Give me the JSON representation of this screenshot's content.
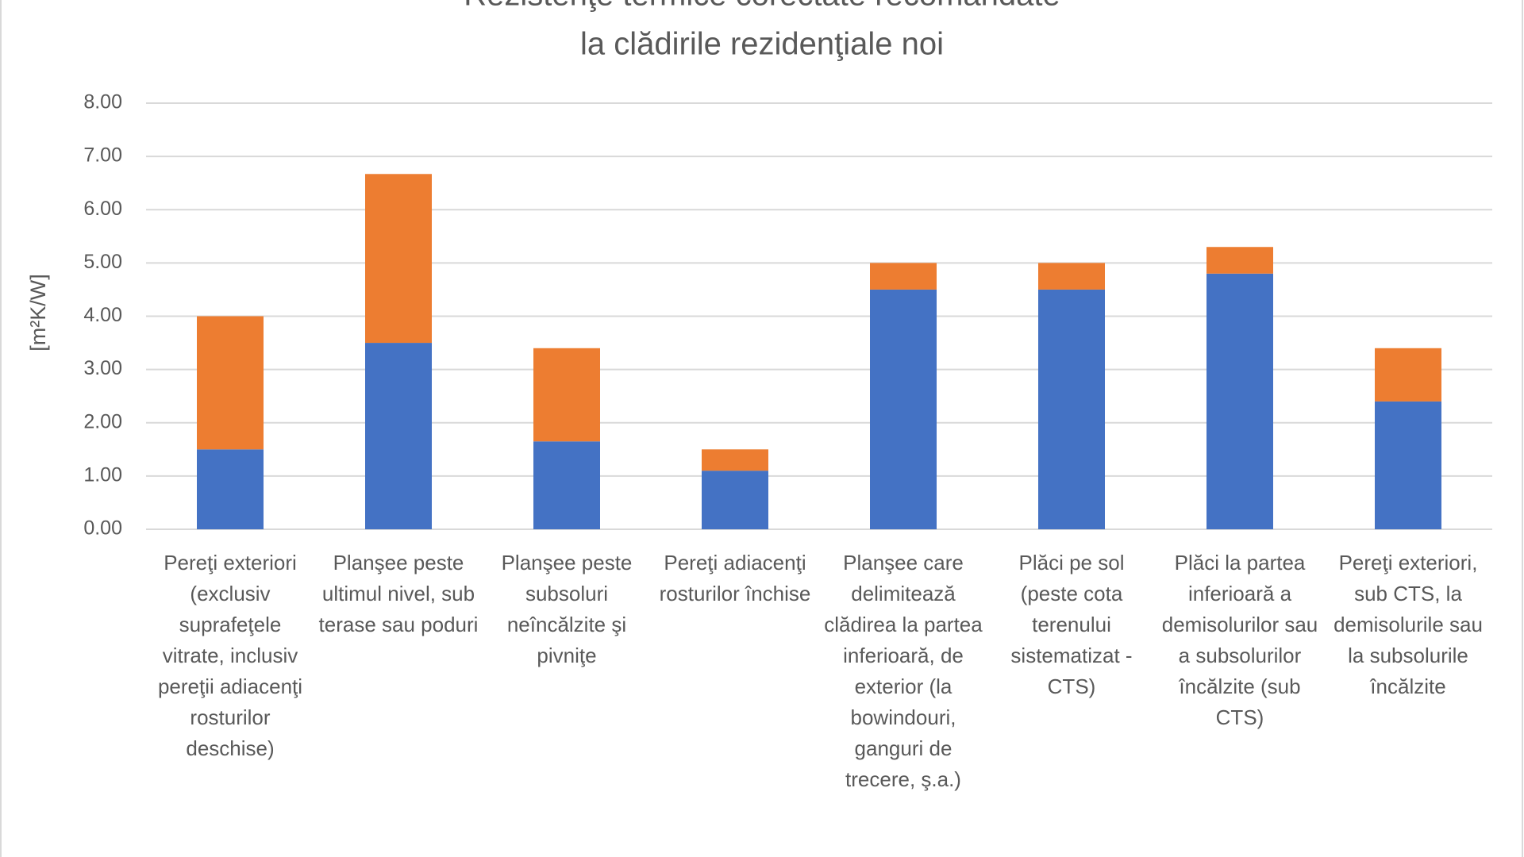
{
  "chart_data": {
    "type": "stacked_bar",
    "title": "Rezistenţe termice corectate recomandate",
    "subtitle": "la clădirile rezidenţiale noi",
    "y_label": "[m²K/W]",
    "categories": [
      "Pereţi exteriori (exclusiv suprafeţele vitrate, inclusiv pereţii adiacenţi rosturilor deschise)",
      "Planşee peste ultimul nivel, sub terase sau poduri",
      "Planşee peste subsoluri neîncălzite şi pivniţe",
      "Pereţi adiacenţi rosturilor închise",
      "Planşee care delimitează clădirea la partea inferioară, de exterior (la bowindouri, ganguri de trecere, ş.a.)",
      "Plăci pe sol (peste cota terenului sistematizat - CTS)",
      "Plăci la partea inferioară a demisolurilor sau a subsolurilor încălzite (sub CTS)",
      "Pereţi exteriori, sub CTS, la demisolurile sau la subsolurile încălzite"
    ],
    "series": [
      {
        "color": "#4472c4",
        "values": [
          1.5,
          3.5,
          1.65,
          1.1,
          4.5,
          4.5,
          4.8,
          2.4
        ]
      },
      {
        "color": "#ed7d31",
        "values": [
          2.5,
          3.17,
          1.75,
          0.4,
          0.5,
          0.5,
          0.5,
          1.0
        ]
      }
    ],
    "ylim": [
      0,
      8
    ],
    "yticks": [
      {
        "value": 0,
        "label": "0.00"
      },
      {
        "value": 1,
        "label": "1.00"
      },
      {
        "value": 2,
        "label": "2.00"
      },
      {
        "value": 3,
        "label": "3.00"
      },
      {
        "value": 4,
        "label": "4.00"
      },
      {
        "value": 5,
        "label": "5.00"
      },
      {
        "value": 6,
        "label": "6.00"
      },
      {
        "value": 7,
        "label": "7.00"
      },
      {
        "value": 8,
        "label": "8.00"
      }
    ],
    "grid": true
  }
}
